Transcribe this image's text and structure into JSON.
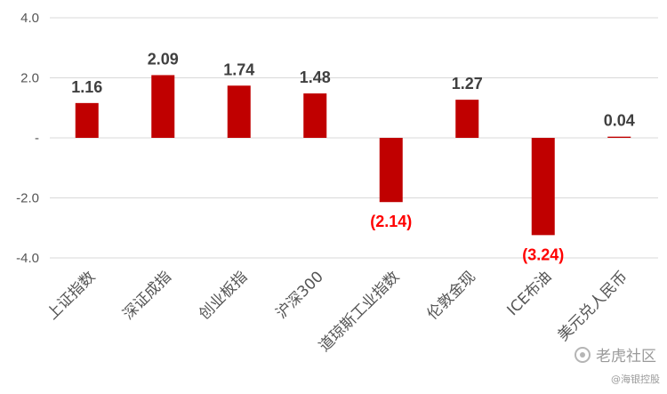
{
  "chart_data": {
    "type": "bar",
    "categories": [
      "上证指数",
      "深证成指",
      "创业板指",
      "沪深300",
      "道琼斯工业指数",
      "伦敦金现",
      "ICE布油",
      "美元兑人民币"
    ],
    "values": [
      1.16,
      2.09,
      1.74,
      1.48,
      -2.14,
      1.27,
      -3.24,
      0.04
    ],
    "data_labels": [
      "1.16",
      "2.09",
      "1.74",
      "1.48",
      "(2.14)",
      "1.27",
      "(3.24)",
      "0.04"
    ],
    "ylim": [
      -4,
      4
    ],
    "yticks": [
      4,
      2,
      0,
      -2,
      -4
    ],
    "ytick_labels": [
      "4.0",
      "2.0",
      "-",
      "-2.0",
      "-4.0"
    ],
    "grid": true,
    "title": "",
    "xlabel": "",
    "ylabel": ""
  },
  "colors": {
    "bar": "#c00000",
    "positive_label": "#404040",
    "negative_label": "#ff0000",
    "grid": "#d9d9d9",
    "axis_text": "#555555"
  },
  "watermark": {
    "brand": "老虎社区",
    "handle": "@海银控股",
    "logo_icon": "tiger-logo-icon"
  }
}
